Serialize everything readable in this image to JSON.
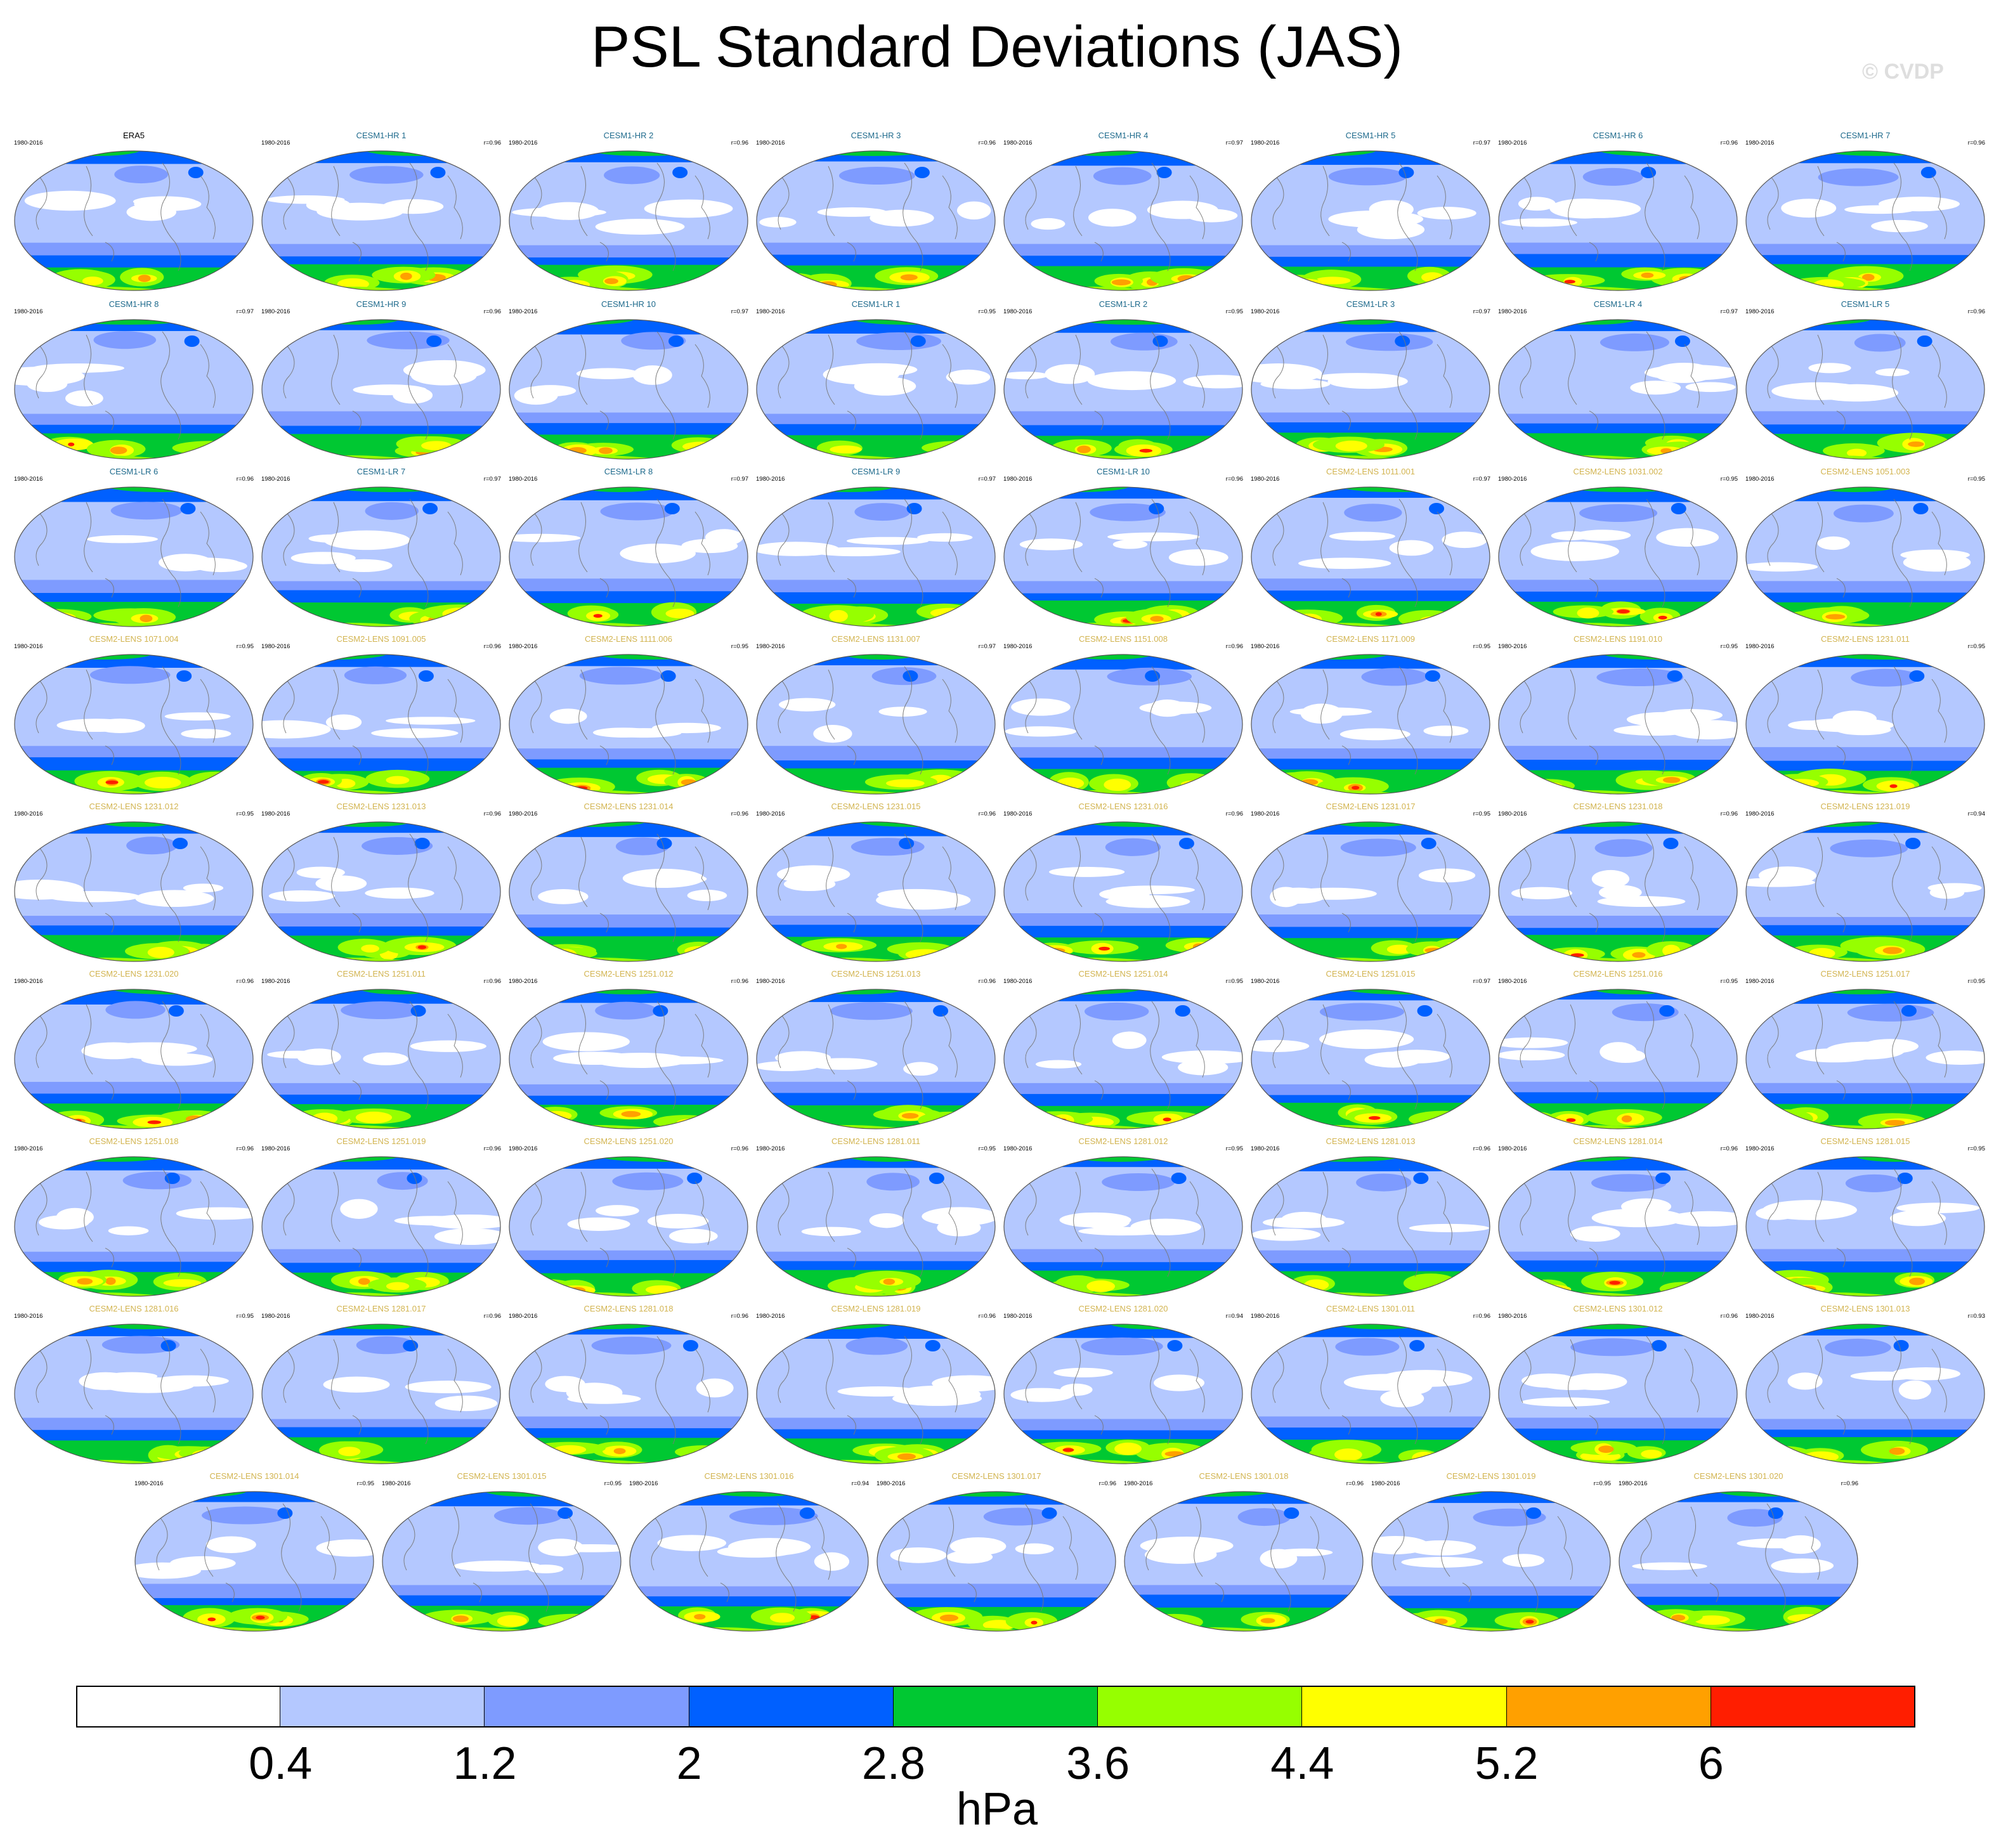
{
  "page": {
    "title": "PSL Standard Deviations (JAS)",
    "copyright": "© CVDP"
  },
  "chart_data": {
    "type": "heatmap",
    "title": "PSL Standard Deviations (JAS)",
    "variable": "PSL",
    "season": "JAS",
    "units": "hPa",
    "period": "1980-2016",
    "colorbar": {
      "levels": [
        "0.4",
        "1.2",
        "2",
        "2.8",
        "3.6",
        "4.4",
        "5.2",
        "6"
      ],
      "colors": [
        "#ffffff",
        "#b4c8ff",
        "#7e9bff",
        "#0060ff",
        "#00c832",
        "#96ff00",
        "#ffff00",
        "#ffa000",
        "#ff1e00"
      ]
    },
    "panels": [
      {
        "name": "ERA5",
        "years": "1980-2016",
        "r": "",
        "group": "obs"
      },
      {
        "name": "CESM1-HR 1",
        "years": "1980-2016",
        "r": "r=0.96",
        "group": "hr"
      },
      {
        "name": "CESM1-HR 2",
        "years": "1980-2016",
        "r": "r=0.96",
        "group": "hr"
      },
      {
        "name": "CESM1-HR 3",
        "years": "1980-2016",
        "r": "r=0.96",
        "group": "hr"
      },
      {
        "name": "CESM1-HR 4",
        "years": "1980-2016",
        "r": "r=0.97",
        "group": "hr"
      },
      {
        "name": "CESM1-HR 5",
        "years": "1980-2016",
        "r": "r=0.97",
        "group": "hr"
      },
      {
        "name": "CESM1-HR 6",
        "years": "1980-2016",
        "r": "r=0.96",
        "group": "hr"
      },
      {
        "name": "CESM1-HR 7",
        "years": "1980-2016",
        "r": "r=0.96",
        "group": "hr"
      },
      {
        "name": "CESM1-HR 8",
        "years": "1980-2016",
        "r": "r=0.97",
        "group": "hr"
      },
      {
        "name": "CESM1-HR 9",
        "years": "1980-2016",
        "r": "r=0.96",
        "group": "hr"
      },
      {
        "name": "CESM1-HR 10",
        "years": "1980-2016",
        "r": "r=0.97",
        "group": "hr"
      },
      {
        "name": "CESM1-LR 1",
        "years": "1980-2016",
        "r": "r=0.95",
        "group": "lr"
      },
      {
        "name": "CESM1-LR 2",
        "years": "1980-2016",
        "r": "r=0.95",
        "group": "lr"
      },
      {
        "name": "CESM1-LR 3",
        "years": "1980-2016",
        "r": "r=0.97",
        "group": "lr"
      },
      {
        "name": "CESM1-LR 4",
        "years": "1980-2016",
        "r": "r=0.97",
        "group": "lr"
      },
      {
        "name": "CESM1-LR 5",
        "years": "1980-2016",
        "r": "r=0.96",
        "group": "lr"
      },
      {
        "name": "CESM1-LR 6",
        "years": "1980-2016",
        "r": "r=0.96",
        "group": "lr"
      },
      {
        "name": "CESM1-LR 7",
        "years": "1980-2016",
        "r": "r=0.97",
        "group": "lr"
      },
      {
        "name": "CESM1-LR 8",
        "years": "1980-2016",
        "r": "r=0.97",
        "group": "lr"
      },
      {
        "name": "CESM1-LR 9",
        "years": "1980-2016",
        "r": "r=0.97",
        "group": "lr"
      },
      {
        "name": "CESM1-LR 10",
        "years": "1980-2016",
        "r": "r=0.96",
        "group": "lr"
      },
      {
        "name": "CESM2-LENS 1011.001",
        "years": "1980-2016",
        "r": "r=0.97",
        "group": "lens"
      },
      {
        "name": "CESM2-LENS 1031.002",
        "years": "1980-2016",
        "r": "r=0.95",
        "group": "lens"
      },
      {
        "name": "CESM2-LENS 1051.003",
        "years": "1980-2016",
        "r": "r=0.95",
        "group": "lens"
      },
      {
        "name": "CESM2-LENS 1071.004",
        "years": "1980-2016",
        "r": "r=0.95",
        "group": "lens"
      },
      {
        "name": "CESM2-LENS 1091.005",
        "years": "1980-2016",
        "r": "r=0.96",
        "group": "lens"
      },
      {
        "name": "CESM2-LENS 1111.006",
        "years": "1980-2016",
        "r": "r=0.95",
        "group": "lens"
      },
      {
        "name": "CESM2-LENS 1131.007",
        "years": "1980-2016",
        "r": "r=0.97",
        "group": "lens"
      },
      {
        "name": "CESM2-LENS 1151.008",
        "years": "1980-2016",
        "r": "r=0.96",
        "group": "lens"
      },
      {
        "name": "CESM2-LENS 1171.009",
        "years": "1980-2016",
        "r": "r=0.95",
        "group": "lens"
      },
      {
        "name": "CESM2-LENS 1191.010",
        "years": "1980-2016",
        "r": "r=0.95",
        "group": "lens"
      },
      {
        "name": "CESM2-LENS 1231.011",
        "years": "1980-2016",
        "r": "r=0.95",
        "group": "lens"
      },
      {
        "name": "CESM2-LENS 1231.012",
        "years": "1980-2016",
        "r": "r=0.95",
        "group": "lens"
      },
      {
        "name": "CESM2-LENS 1231.013",
        "years": "1980-2016",
        "r": "r=0.96",
        "group": "lens"
      },
      {
        "name": "CESM2-LENS 1231.014",
        "years": "1980-2016",
        "r": "r=0.96",
        "group": "lens"
      },
      {
        "name": "CESM2-LENS 1231.015",
        "years": "1980-2016",
        "r": "r=0.96",
        "group": "lens"
      },
      {
        "name": "CESM2-LENS 1231.016",
        "years": "1980-2016",
        "r": "r=0.96",
        "group": "lens"
      },
      {
        "name": "CESM2-LENS 1231.017",
        "years": "1980-2016",
        "r": "r=0.95",
        "group": "lens"
      },
      {
        "name": "CESM2-LENS 1231.018",
        "years": "1980-2016",
        "r": "r=0.96",
        "group": "lens"
      },
      {
        "name": "CESM2-LENS 1231.019",
        "years": "1980-2016",
        "r": "r=0.94",
        "group": "lens"
      },
      {
        "name": "CESM2-LENS 1231.020",
        "years": "1980-2016",
        "r": "r=0.96",
        "group": "lens"
      },
      {
        "name": "CESM2-LENS 1251.011",
        "years": "1980-2016",
        "r": "r=0.96",
        "group": "lens"
      },
      {
        "name": "CESM2-LENS 1251.012",
        "years": "1980-2016",
        "r": "r=0.96",
        "group": "lens"
      },
      {
        "name": "CESM2-LENS 1251.013",
        "years": "1980-2016",
        "r": "r=0.96",
        "group": "lens"
      },
      {
        "name": "CESM2-LENS 1251.014",
        "years": "1980-2016",
        "r": "r=0.95",
        "group": "lens"
      },
      {
        "name": "CESM2-LENS 1251.015",
        "years": "1980-2016",
        "r": "r=0.97",
        "group": "lens"
      },
      {
        "name": "CESM2-LENS 1251.016",
        "years": "1980-2016",
        "r": "r=0.95",
        "group": "lens"
      },
      {
        "name": "CESM2-LENS 1251.017",
        "years": "1980-2016",
        "r": "r=0.95",
        "group": "lens"
      },
      {
        "name": "CESM2-LENS 1251.018",
        "years": "1980-2016",
        "r": "r=0.96",
        "group": "lens"
      },
      {
        "name": "CESM2-LENS 1251.019",
        "years": "1980-2016",
        "r": "r=0.96",
        "group": "lens"
      },
      {
        "name": "CESM2-LENS 1251.020",
        "years": "1980-2016",
        "r": "r=0.96",
        "group": "lens"
      },
      {
        "name": "CESM2-LENS 1281.011",
        "years": "1980-2016",
        "r": "r=0.95",
        "group": "lens"
      },
      {
        "name": "CESM2-LENS 1281.012",
        "years": "1980-2016",
        "r": "r=0.95",
        "group": "lens"
      },
      {
        "name": "CESM2-LENS 1281.013",
        "years": "1980-2016",
        "r": "r=0.96",
        "group": "lens"
      },
      {
        "name": "CESM2-LENS 1281.014",
        "years": "1980-2016",
        "r": "r=0.96",
        "group": "lens"
      },
      {
        "name": "CESM2-LENS 1281.015",
        "years": "1980-2016",
        "r": "r=0.95",
        "group": "lens"
      },
      {
        "name": "CESM2-LENS 1281.016",
        "years": "1980-2016",
        "r": "r=0.95",
        "group": "lens"
      },
      {
        "name": "CESM2-LENS 1281.017",
        "years": "1980-2016",
        "r": "r=0.96",
        "group": "lens"
      },
      {
        "name": "CESM2-LENS 1281.018",
        "years": "1980-2016",
        "r": "r=0.96",
        "group": "lens"
      },
      {
        "name": "CESM2-LENS 1281.019",
        "years": "1980-2016",
        "r": "r=0.96",
        "group": "lens"
      },
      {
        "name": "CESM2-LENS 1281.020",
        "years": "1980-2016",
        "r": "r=0.94",
        "group": "lens"
      },
      {
        "name": "CESM2-LENS 1301.011",
        "years": "1980-2016",
        "r": "r=0.96",
        "group": "lens"
      },
      {
        "name": "CESM2-LENS 1301.012",
        "years": "1980-2016",
        "r": "r=0.96",
        "group": "lens"
      },
      {
        "name": "CESM2-LENS 1301.013",
        "years": "1980-2016",
        "r": "r=0.93",
        "group": "lens"
      },
      {
        "name": "CESM2-LENS 1301.014",
        "years": "1980-2016",
        "r": "r=0.95",
        "group": "lens"
      },
      {
        "name": "CESM2-LENS 1301.015",
        "years": "1980-2016",
        "r": "r=0.95",
        "group": "lens"
      },
      {
        "name": "CESM2-LENS 1301.016",
        "years": "1980-2016",
        "r": "r=0.94",
        "group": "lens"
      },
      {
        "name": "CESM2-LENS 1301.017",
        "years": "1980-2016",
        "r": "r=0.96",
        "group": "lens"
      },
      {
        "name": "CESM2-LENS 1301.018",
        "years": "1980-2016",
        "r": "r=0.96",
        "group": "lens"
      },
      {
        "name": "CESM2-LENS 1301.019",
        "years": "1980-2016",
        "r": "r=0.95",
        "group": "lens"
      },
      {
        "name": "CESM2-LENS 1301.020",
        "years": "1980-2016",
        "r": "r=0.96",
        "group": "lens"
      }
    ],
    "title_colors": {
      "obs": "#000000",
      "hr": "#1e6a8c",
      "lr": "#1e6a8c",
      "lens": "#d2b450"
    }
  }
}
